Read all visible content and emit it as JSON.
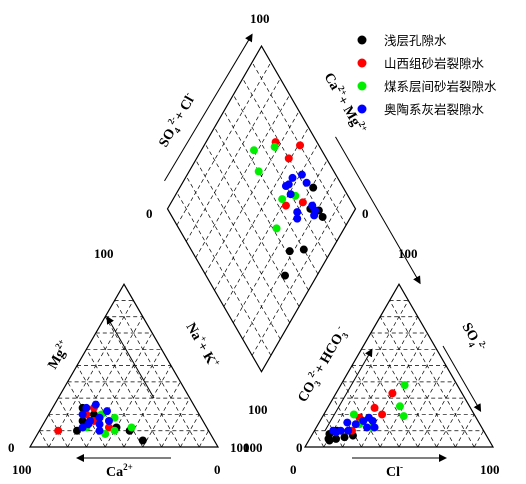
{
  "chart_data": {
    "type": "scatter",
    "subtype": "piper-diagram",
    "legend": {
      "placement": "top-right",
      "entries": [
        {
          "name": "浅层孔隙水",
          "color": "#000000"
        },
        {
          "name": "山西组砂岩裂隙水",
          "color": "#ff0000"
        },
        {
          "name": "煤系层间砂岩裂隙水",
          "color": "#00ee00"
        },
        {
          "name": "奥陶系灰岩裂隙水",
          "color": "#0000ff"
        }
      ]
    },
    "grid": true,
    "grid_step": 10,
    "axes": {
      "cation_triangle": {
        "ca_label": "Ca",
        "ca_charge": "2+",
        "mg_label": "Mg",
        "mg_charge": "2+",
        "nak_label": "Na",
        "nak_plus": "+ K",
        "nak_charge": "+",
        "t100_top": "100",
        "t0_left": "0",
        "t100_right": "100",
        "t100_bottom": "100",
        "t0_bottom": "0"
      },
      "anion_triangle": {
        "so4_label": "SO",
        "so4_sub": "4",
        "so4_charge": "2-",
        "co3_label": "CO",
        "co3_sub": "3",
        "co3_charge": "2-",
        "plus_hco3": "+ HCO",
        "hco3_sub": "3",
        "hco3_charge": "-",
        "cl_label": "Cl",
        "cl_charge": "-",
        "t100_top": "100",
        "t0_left": "0",
        "t100_left_axis": "100",
        "t0_bottom": "0",
        "t100_bottom": "100"
      },
      "diamond": {
        "so4cl_label": "SO",
        "so4cl_sub": "4",
        "so4cl_charge": "2-",
        "so4cl_plus": "+ Cl",
        "so4cl_cl_charge": "-",
        "camg_label": "Ca",
        "camg_charge": "2+",
        "camg_plus": "+ Mg",
        "camg_mg_charge": "2+",
        "t100_top": "100",
        "t0_left": "0",
        "t0_right": "0",
        "t100_bottom": "100"
      }
    },
    "series": [
      {
        "name": "浅层孔隙水",
        "color": "#000000",
        "points": [
          {
            "ca": 60,
            "mg": 24,
            "na_k": 16,
            "cl": 22,
            "so4": 7,
            "hco3_co3": 71
          },
          {
            "ca": 56,
            "mg": 20,
            "na_k": 24,
            "cl": 18,
            "so4": 6,
            "hco3_co3": 76
          },
          {
            "ca": 64,
            "mg": 16,
            "na_k": 20,
            "cl": 14,
            "so4": 5,
            "hco3_co3": 81
          },
          {
            "ca": 48,
            "mg": 12,
            "na_k": 40,
            "cl": 10,
            "so4": 5,
            "hco3_co3": 85
          },
          {
            "ca": 42,
            "mg": 10,
            "na_k": 48,
            "cl": 12,
            "so4": 10,
            "hco3_co3": 78
          },
          {
            "ca": 38,
            "mg": 4,
            "na_k": 58,
            "cl": 9,
            "so4": 8,
            "hco3_co3": 83
          },
          {
            "ca": 70,
            "mg": 10,
            "na_k": 20,
            "cl": 11,
            "so4": 4,
            "hco3_co3": 85
          }
        ]
      },
      {
        "name": "山西组砂岩裂隙水",
        "color": "#ff0000",
        "points": [
          {
            "ca": 54,
            "mg": 24,
            "na_k": 22,
            "cl": 30,
            "so4": 33,
            "hco3_co3": 37
          },
          {
            "ca": 60,
            "mg": 20,
            "na_k": 20,
            "cl": 31,
            "so4": 20,
            "hco3_co3": 49
          },
          {
            "ca": 80,
            "mg": 10,
            "na_k": 10,
            "cl": 25,
            "so4": 24,
            "hco3_co3": 51
          },
          {
            "ca": 52,
            "mg": 12,
            "na_k": 36,
            "cl": 20,
            "so4": 18,
            "hco3_co3": 62
          },
          {
            "ca": 58,
            "mg": 16,
            "na_k": 26,
            "cl": 20,
            "so4": 10,
            "hco3_co3": 70
          }
        ]
      },
      {
        "name": "煤系层间砂岩裂隙水",
        "color": "#00ee00",
        "points": [
          {
            "ca": 46,
            "mg": 18,
            "na_k": 36,
            "cl": 34,
            "so4": 38,
            "hco3_co3": 28
          },
          {
            "ca": 64,
            "mg": 12,
            "na_k": 24,
            "cl": 43,
            "so4": 19,
            "hco3_co3": 38
          },
          {
            "ca": 50,
            "mg": 10,
            "na_k": 40,
            "cl": 38,
            "so4": 25,
            "hco3_co3": 37
          },
          {
            "ca": 56,
            "mg": 8,
            "na_k": 36,
            "cl": 30,
            "so4": 12,
            "hco3_co3": 58
          },
          {
            "ca": 40,
            "mg": 12,
            "na_k": 48,
            "cl": 16,
            "so4": 20,
            "hco3_co3": 64
          },
          {
            "ca": 52,
            "mg": 20,
            "na_k": 28,
            "cl": 22,
            "so4": 14,
            "hco3_co3": 64
          }
        ]
      },
      {
        "name": "奥陶系灰岩裂隙水",
        "color": "#0000ff",
        "points": [
          {
            "ca": 54,
            "mg": 18,
            "na_k": 28,
            "cl": 25,
            "so4": 18,
            "hco3_co3": 57
          },
          {
            "ca": 58,
            "mg": 24,
            "na_k": 18,
            "cl": 20,
            "so4": 14,
            "hco3_co3": 66
          },
          {
            "ca": 62,
            "mg": 20,
            "na_k": 18,
            "cl": 23,
            "so4": 16,
            "hco3_co3": 61
          },
          {
            "ca": 48,
            "mg": 22,
            "na_k": 30,
            "cl": 28,
            "so4": 16,
            "hco3_co3": 56
          },
          {
            "ca": 56,
            "mg": 14,
            "na_k": 30,
            "cl": 27,
            "so4": 12,
            "hco3_co3": 61
          },
          {
            "ca": 60,
            "mg": 16,
            "na_k": 24,
            "cl": 31,
            "so4": 12,
            "hco3_co3": 57
          },
          {
            "ca": 50,
            "mg": 16,
            "na_k": 34,
            "cl": 18,
            "so4": 10,
            "hco3_co3": 72
          },
          {
            "ca": 66,
            "mg": 12,
            "na_k": 22,
            "cl": 14,
            "so4": 10,
            "hco3_co3": 76
          },
          {
            "ca": 58,
            "mg": 10,
            "na_k": 32,
            "cl": 15,
            "so4": 15,
            "hco3_co3": 70
          },
          {
            "ca": 52,
            "mg": 26,
            "na_k": 22,
            "cl": 12,
            "so4": 9,
            "hco3_co3": 79
          },
          {
            "ca": 62,
            "mg": 14,
            "na_k": 24,
            "cl": 10,
            "so4": 10,
            "hco3_co3": 80
          }
        ]
      }
    ]
  }
}
